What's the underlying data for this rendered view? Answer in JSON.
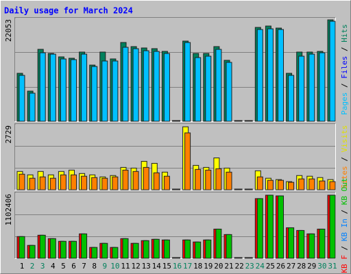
{
  "chart_data": [
    {
      "type": "bar",
      "title": "Daily usage for March 2024",
      "ylim": [
        0,
        22053
      ],
      "yticks": [
        22053
      ],
      "grid_lines": 3,
      "series": [
        {
          "name": "Hits",
          "color": "#00805c",
          "values": [
            10223,
            6426,
            15335,
            14459,
            13728,
            13436,
            14751,
            11976,
            14751,
            13290,
            16795,
            15919,
            15627,
            15481,
            14897,
            0,
            17088,
            14459,
            14459,
            15919,
            12998,
            0,
            0,
            20009,
            20301,
            19863,
            10223,
            14751,
            14751,
            14897,
            21615
          ]
        },
        {
          "name": "Pages",
          "color": "#00c0ff",
          "values": [
            9782,
            5986,
            14600,
            14308,
            13286,
            13140,
            14308,
            11680,
            12848,
            12848,
            15768,
            15476,
            15038,
            14892,
            14454,
            0,
            16790,
            13578,
            13870,
            15330,
            12556,
            0,
            0,
            19564,
            19710,
            19564,
            9782,
            13870,
            14308,
            14600,
            21316
          ]
        }
      ],
      "legend_only": [
        {
          "name": "Files",
          "color": "#0000ff"
        }
      ],
      "legend_order": [
        "Pages",
        "Files",
        "Hits"
      ]
    },
    {
      "type": "bar",
      "ylim": [
        0,
        2729
      ],
      "yticks": [
        2729
      ],
      "grid_lines": 3,
      "series": [
        {
          "name": "Visits",
          "color": "#ffff00",
          "values": [
            759,
            618,
            759,
            618,
            759,
            815,
            674,
            618,
            534,
            590,
            927,
            899,
            1180,
            1096,
            731,
            0,
            2613,
            1012,
            927,
            1321,
            899,
            0,
            0,
            787,
            478,
            422,
            337,
            590,
            562,
            506,
            422
          ]
        },
        {
          "name": "Sites",
          "color": "#ff8000",
          "values": [
            646,
            478,
            534,
            478,
            618,
            618,
            562,
            506,
            478,
            534,
            815,
            759,
            927,
            703,
            562,
            0,
            2360,
            843,
            815,
            871,
            731,
            0,
            0,
            534,
            393,
            393,
            309,
            450,
            450,
            365,
            337
          ]
        }
      ],
      "legend_only": [],
      "legend_order": [
        "Sites",
        "Visits"
      ]
    },
    {
      "type": "bar",
      "ylim": [
        0,
        1102406
      ],
      "yticks": [
        1102406
      ],
      "grid_lines": 3,
      "series": [
        {
          "name": "KB F",
          "color": "#ff0000",
          "values": [
            363680,
            215935,
            386410,
            329585,
            284125,
            284125,
            409140,
            181840,
            250030,
            181840,
            329585,
            250030,
            295490,
            318220,
            306855,
            0,
            306855,
            272760,
            306855,
            488695,
            397775,
            0,
            0,
            1000120,
            1056945,
            1045580,
            511425,
            465965,
            409140,
            488695,
            1056945
          ]
        },
        {
          "name": "KB Out",
          "color": "#00c000",
          "values": [
            363680,
            215935,
            386410,
            329585,
            284125,
            284125,
            409140,
            181840,
            250030,
            181840,
            329585,
            250030,
            295490,
            318220,
            306855,
            0,
            306855,
            272760,
            306855,
            488695,
            397775,
            0,
            0,
            1000120,
            1056945,
            1045580,
            511425,
            465965,
            409140,
            488695,
            1056945
          ]
        }
      ],
      "legend_only": [
        {
          "name": "KB In",
          "color": "#0080ff"
        }
      ],
      "legend_order": [
        "KB F",
        "KB In",
        "KB Out"
      ],
      "categories": [
        "1",
        "2",
        "3",
        "4",
        "5",
        "6",
        "7",
        "8",
        "9",
        "10",
        "11",
        "12",
        "13",
        "14",
        "15",
        "16",
        "17",
        "18",
        "19",
        "20",
        "21",
        "22",
        "23",
        "24",
        "25",
        "26",
        "27",
        "28",
        "29",
        "30",
        "31"
      ],
      "category_colors": [
        "#000000",
        "#00805c",
        "#00805c",
        "#000000",
        "#000000",
        "#000000",
        "#000000",
        "#000000",
        "#00805c",
        "#00805c",
        "#000000",
        "#000000",
        "#000000",
        "#000000",
        "#000000",
        "#00805c",
        "#00805c",
        "#000000",
        "#000000",
        "#000000",
        "#000000",
        "#000000",
        "#00805c",
        "#00805c",
        "#000000",
        "#000000",
        "#000000",
        "#000000",
        "#000000",
        "#00805c",
        "#00805c"
      ]
    }
  ]
}
